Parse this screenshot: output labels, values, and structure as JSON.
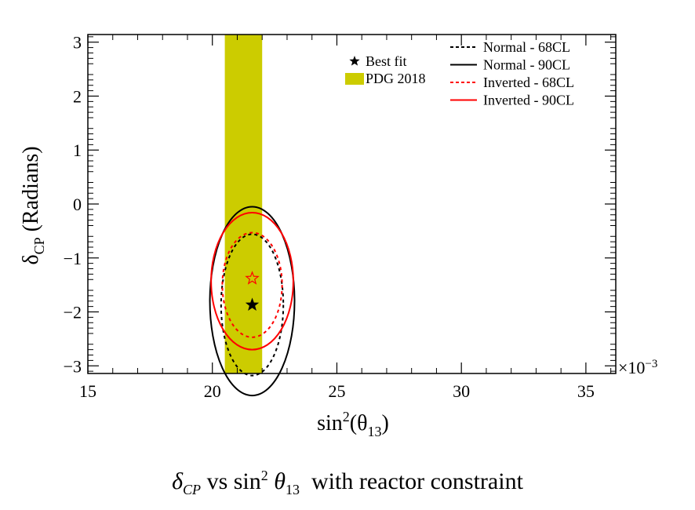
{
  "chart_data": {
    "type": "scatter",
    "title": "",
    "xlabel": "sin²(θ₁₃)",
    "ylabel": "δCP (Radians)",
    "x_multiplier": "×10⁻³",
    "xlim": [
      15,
      36.2
    ],
    "ylim": [
      -3.14159,
      3.14159
    ],
    "x_ticks": [
      15,
      20,
      25,
      30,
      35
    ],
    "y_ticks": [
      -3,
      -2,
      -1,
      0,
      1,
      2,
      3
    ],
    "grid": false,
    "legend_placement": "top-right",
    "pdg_band": {
      "label": "PDG 2018",
      "x_range": [
        20.5,
        22.0
      ],
      "color": "#cccc00"
    },
    "best_fit_points": [
      {
        "hierarchy": "Normal",
        "x": 21.6,
        "y": -1.87
      },
      {
        "hierarchy": "Inverted",
        "x": 21.6,
        "y": -1.38
      }
    ],
    "series": [
      {
        "name": "Normal - 68CL",
        "color": "#000000",
        "dashed": true,
        "center": [
          21.6,
          -1.87
        ],
        "half_width": 1.25,
        "half_height": 1.31
      },
      {
        "name": "Normal - 90CL",
        "color": "#000000",
        "dashed": false,
        "center": [
          21.6,
          -1.8
        ],
        "half_width": 1.7,
        "half_height": 1.75
      },
      {
        "name": "Inverted - 68CL",
        "color": "#ff0000",
        "dashed": true,
        "center": [
          21.6,
          -1.5
        ],
        "half_width": 1.2,
        "half_height": 0.97
      },
      {
        "name": "Inverted - 90CL",
        "color": "#ff0000",
        "dashed": false,
        "center": [
          21.6,
          -1.43
        ],
        "half_width": 1.65,
        "half_height": 1.27
      }
    ],
    "legend_left": [
      {
        "label": "Best fit",
        "symbol": "star"
      },
      {
        "label": "PDG 2018",
        "symbol": "box"
      }
    ]
  },
  "caption": {
    "delta": "δ",
    "sub_cp": "CP",
    "vs": " vs sin",
    "sup2": "2",
    "theta": "θ",
    "sub13": "13",
    "rest": "  with reactor constraint"
  },
  "labels": {
    "xlabel_main": "sin",
    "xlabel_sup": "2",
    "xlabel_paren": "(θ",
    "xlabel_sub": "13",
    "xlabel_close": ")",
    "ylabel_delta": "δ",
    "ylabel_sub": "CP",
    "ylabel_rest": " (Radians)",
    "multiplier": "×10",
    "multiplier_exp": "−3"
  }
}
